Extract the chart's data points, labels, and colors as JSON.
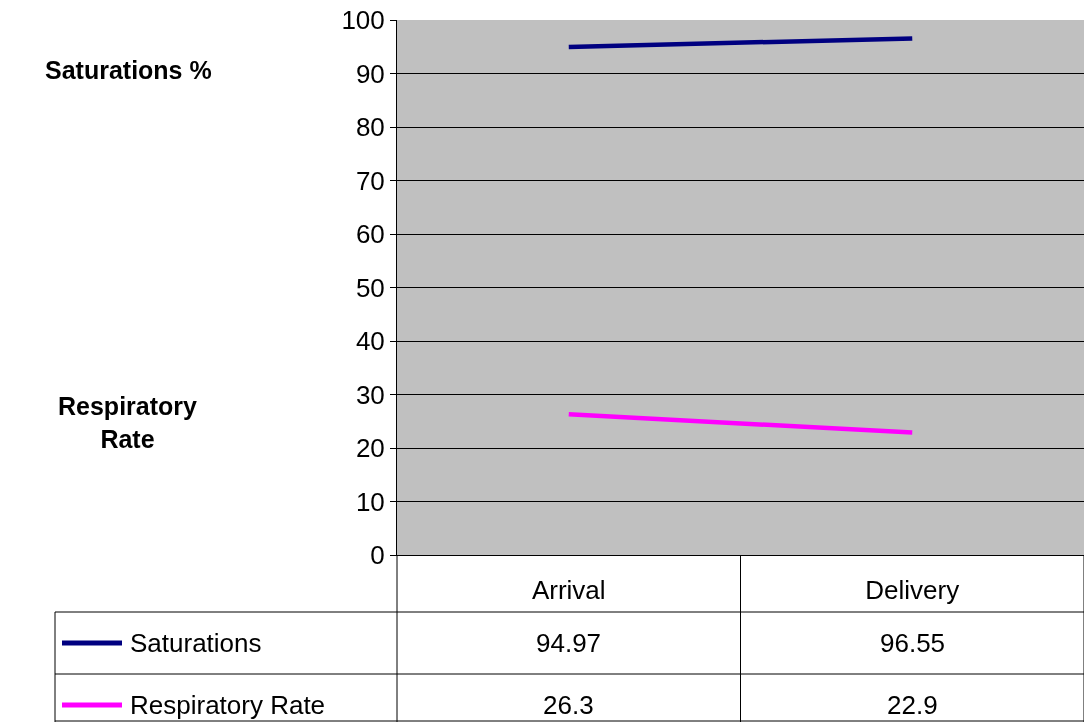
{
  "chart_data": {
    "type": "line",
    "categories": [
      "Arrival",
      "Delivery"
    ],
    "series": [
      {
        "name": "Saturations",
        "color": "#000080",
        "values": [
          94.97,
          96.55
        ]
      },
      {
        "name": "Respiratory Rate",
        "color": "#ff00ff",
        "values": [
          26.3,
          22.9
        ]
      }
    ],
    "annotations": [
      "Saturations %",
      "Respiratory Rate"
    ],
    "ylim": [
      0,
      100
    ],
    "yticks": [
      0,
      10,
      20,
      30,
      40,
      50,
      60,
      70,
      80,
      90,
      100
    ],
    "grid": "y",
    "legend": "bottom",
    "data_labels": true,
    "marker": "none",
    "line_style": "solid"
  }
}
